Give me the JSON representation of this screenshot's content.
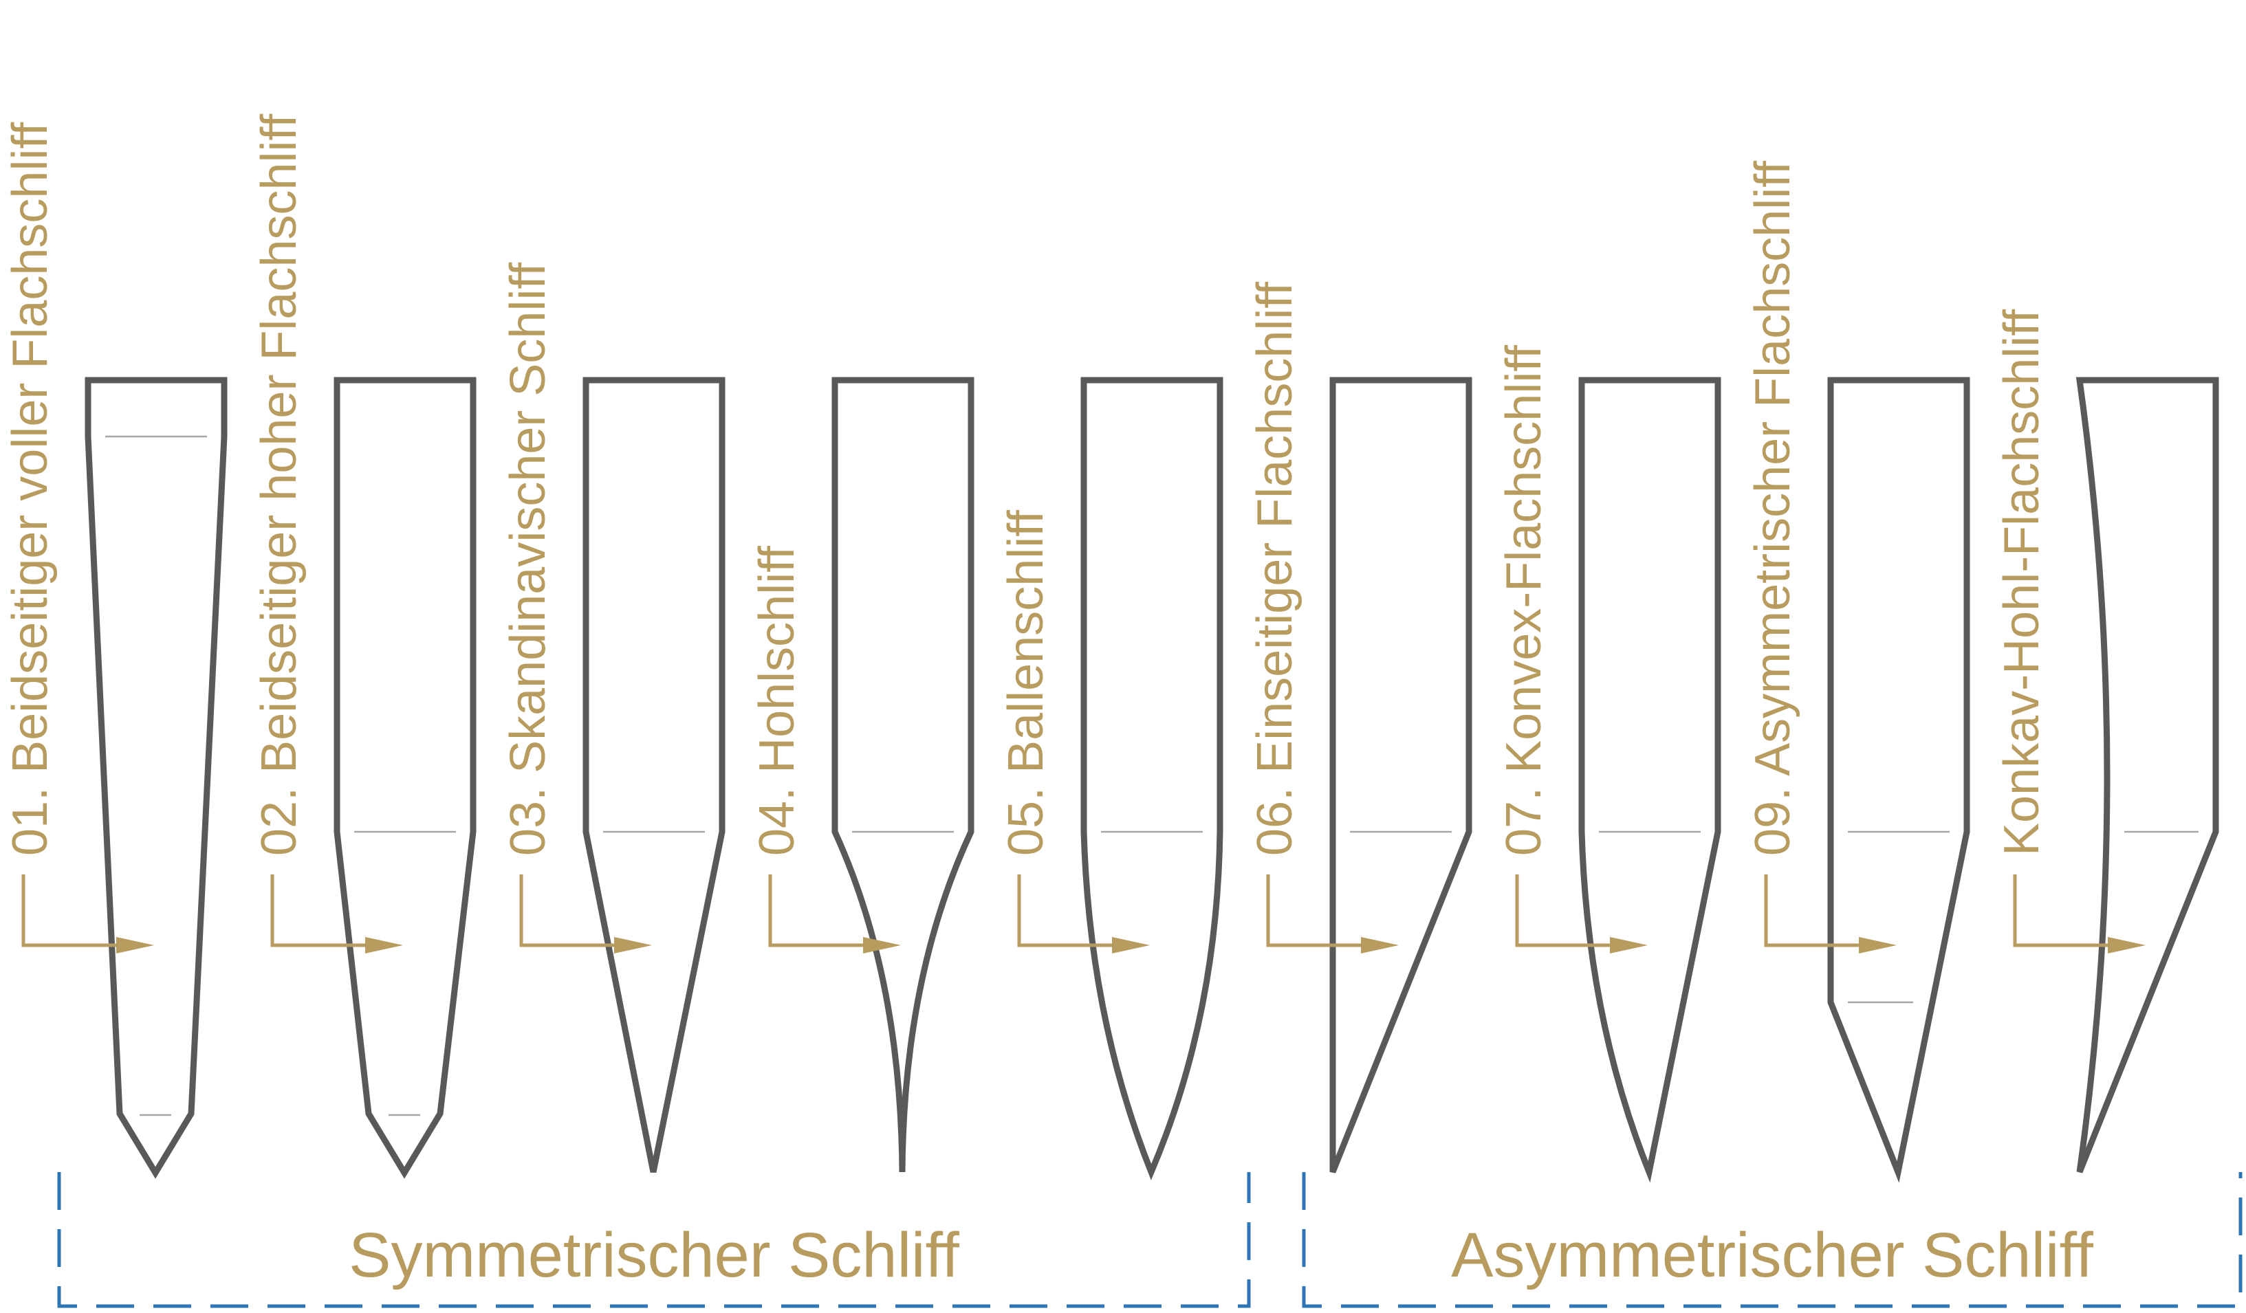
{
  "colors": {
    "label": "#b89b5e",
    "blade": "#595959",
    "bevel": "#a6a6a6",
    "arrow": "#b89b5e",
    "bracket": "#2e75b6"
  },
  "grinds": [
    {
      "label": "01. Beidseitiger voller Flachschliff",
      "shape": "full-flat"
    },
    {
      "label": "02. Beidseitiger hoher Flachschliff",
      "shape": "high-flat"
    },
    {
      "label": "03. Skandinavischer Schliff",
      "shape": "scandi"
    },
    {
      "label": "04. Hohlschliff",
      "shape": "hollow"
    },
    {
      "label": "05. Ballenschliff",
      "shape": "convex"
    },
    {
      "label": "06. Einseitiger Flachschliff",
      "shape": "chisel"
    },
    {
      "label": "07. Konvex-Flachschliff",
      "shape": "convex-flat"
    },
    {
      "label": "09. Asymmetrischer Flachschliff",
      "shape": "asymmetric-flat"
    },
    {
      "label": "Konkav-Hohl-Flachschliff",
      "shape": "concave-hollow-flat"
    }
  ],
  "groups": [
    {
      "label": "Symmetrischer Schliff"
    },
    {
      "label": "Asymmetrischer Schliff"
    }
  ]
}
